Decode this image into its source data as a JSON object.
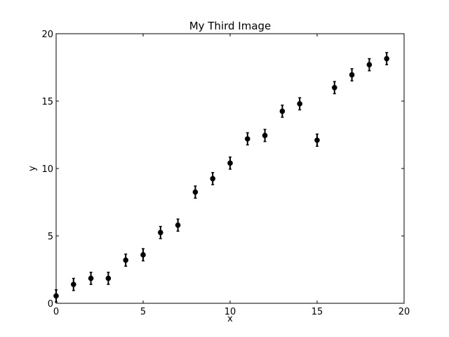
{
  "chart_data": {
    "type": "scatter",
    "title": "My Third Image",
    "xlabel": "x",
    "ylabel": "y",
    "xlim": [
      0,
      20
    ],
    "ylim": [
      0,
      20
    ],
    "xticks": [
      0,
      5,
      10,
      15,
      20
    ],
    "yticks": [
      0,
      5,
      10,
      15,
      20
    ],
    "grid": false,
    "marker_color": "#000000",
    "error_bar_halfwidth": 0.45,
    "series": [
      {
        "x": [
          0,
          1,
          2,
          3,
          4,
          5,
          6,
          7,
          8,
          9,
          10,
          11,
          12,
          13,
          14,
          15,
          16,
          17,
          18,
          19
        ],
        "y": [
          0.55,
          1.4,
          1.85,
          1.85,
          3.2,
          3.6,
          5.25,
          5.8,
          8.25,
          9.25,
          10.4,
          12.2,
          12.45,
          14.25,
          14.8,
          12.1,
          16.0,
          16.95,
          17.7,
          18.15
        ]
      }
    ]
  }
}
